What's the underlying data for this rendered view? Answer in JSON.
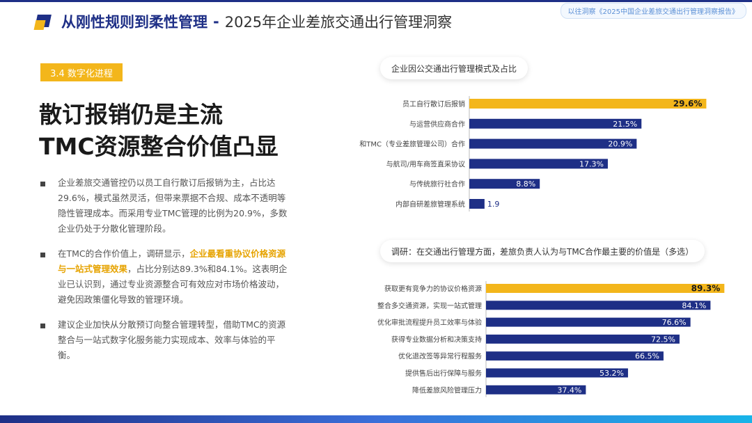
{
  "header": {
    "title": "从刚性规则到柔性管理",
    "separator": "-",
    "subtitle": "2025年企业差旅交通出行管理洞察",
    "source_tag": "以往洞察《2025中国企业差旅交通出行管理洞察报告》"
  },
  "section_tag": "3.4 数字化进程",
  "headline": {
    "line1": "散订报销仍是主流",
    "line2": "TMC资源整合价值凸显"
  },
  "bullets": [
    {
      "pre": "企业差旅交通管控仍以员工自行散订后报销为主，占比达29.6%，模式虽然灵活，但带来票据不合规、成本不透明等隐性管理成本。而采用专业TMC管理的比例为20.9%，多数企业仍处于分散化管理阶段。",
      "highlight": "",
      "post": ""
    },
    {
      "pre": "在TMC的合作价值上，调研显示，",
      "highlight": "企业最看重协议价格资源与一站式管理效果",
      "post": "，占比分别达89.3%和84.1%。这表明企业已认识到，通过专业资源整合可有效应对市场价格波动，避免因政策僵化导致的管理环境。"
    },
    {
      "pre": "建议企业加快从分散预订向整合管理转型，借助TMC的资源整合与一站式数字化服务能力实现成本、效率与体验的平衡。",
      "highlight": "",
      "post": ""
    }
  ],
  "colors": {
    "navy": "#1e2f86",
    "gold": "#f3b61b"
  },
  "chart_data": [
    {
      "type": "bar",
      "orientation": "horizontal",
      "title": "企业因公交通出行管理模式及占比",
      "categories": [
        "员工自行散订后报销",
        "与运营供应商合作",
        "和TMC（专业差旅管理公司）合作",
        "与航司/用车商签直采协议",
        "与传统旅行社合作",
        "内部自研差旅管理系统"
      ],
      "values": [
        29.6,
        21.5,
        20.9,
        17.3,
        8.8,
        1.9
      ],
      "value_labels": [
        "29.6%",
        "21.5%",
        "20.9%",
        "17.3%",
        "8.8%",
        "1.9"
      ],
      "highlight_index": 0,
      "xlim": [
        0,
        30
      ]
    },
    {
      "type": "bar",
      "orientation": "horizontal",
      "title": "调研：在交通出行管理方面，差旅负责人认为与TMC合作最主要的价值是（多选）",
      "categories": [
        "获取更有竞争力的协议价格资源",
        "整合多交通资源，实现一站式管理",
        "优化审批流程提升员工效率与体验",
        "获得专业数据分析和决策支持",
        "优化退改签等异常行程服务",
        "提供售后出行保障与服务",
        "降低差旅风险管理压力"
      ],
      "values": [
        89.3,
        84.1,
        76.6,
        72.5,
        66.5,
        53.2,
        37.4
      ],
      "value_labels": [
        "89.3%",
        "84.1%",
        "76.6%",
        "72.5%",
        "66.5%",
        "53.2%",
        "37.4%"
      ],
      "highlight_index": 0,
      "xlim": [
        0,
        90
      ]
    }
  ]
}
